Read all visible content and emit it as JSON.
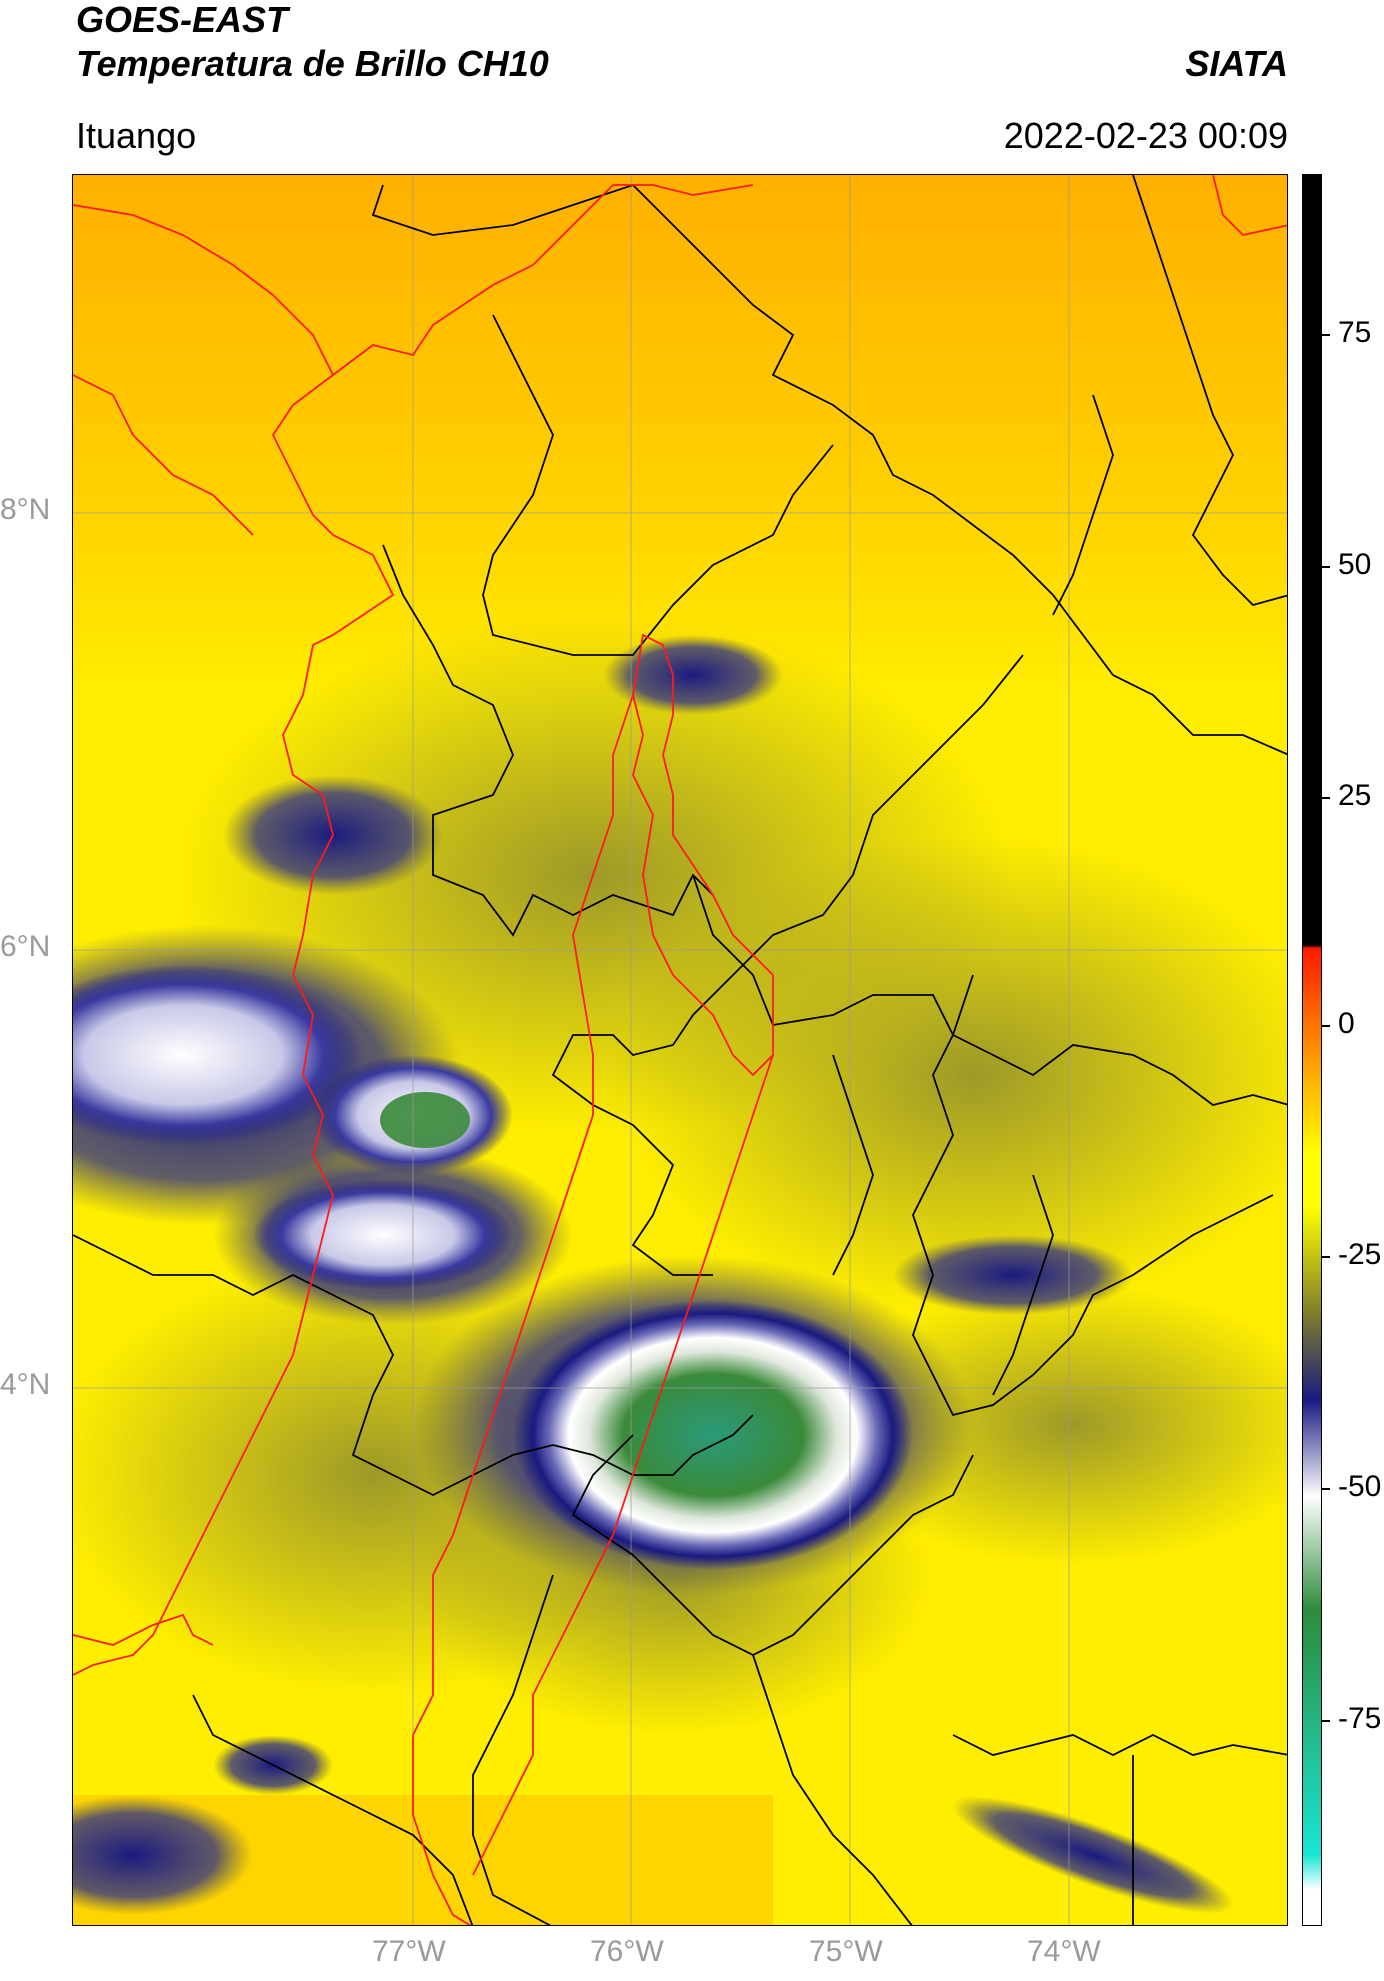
{
  "header": {
    "satellite": "GOES-EAST",
    "product": "Temperatura de Brillo CH10",
    "org": "SIATA",
    "location": "Ituango",
    "datetime": "2022-02-23 00:09"
  },
  "map": {
    "lat_labels": [
      "8°N",
      "6°N",
      "4°N"
    ],
    "lon_labels": [
      "77°W",
      "76°W",
      "75°W",
      "74°W"
    ]
  },
  "colorbar": {
    "tick_labels": [
      "75",
      "50",
      "25",
      "0",
      "-25",
      "-50",
      "-75"
    ],
    "colors": {
      "black": "#000000",
      "red": "#ff1a00",
      "orange": "#ffa500",
      "yellow": "#ffff00",
      "olive": "#7f7f2a",
      "navy": "#1a1a80",
      "white": "#ffffff",
      "green": "#2e8b3c",
      "cyan": "#19e6d6"
    }
  }
}
